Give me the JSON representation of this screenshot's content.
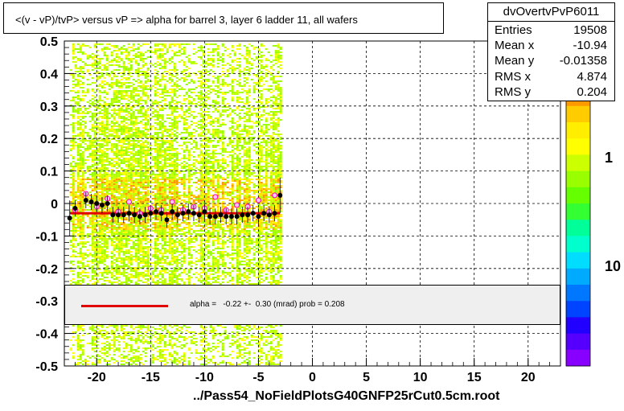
{
  "title": "<(v - vP)/tvP> versus   vP => alpha for barrel 3, layer 6 ladder 11, all wafers",
  "footer": "../Pass54_NoFieldPlotsG40GNFP25rCut0.5cm.root",
  "stats": {
    "name": "dvOvertvPvP6011",
    "rows": [
      {
        "label": "Entries",
        "value": "19508"
      },
      {
        "label": "Mean x",
        "value": "-10.94"
      },
      {
        "label": "Mean y",
        "value": "-0.01358"
      },
      {
        "label": "RMS x",
        "value": "4.874"
      },
      {
        "label": "RMS y",
        "value": "0.204"
      }
    ]
  },
  "legend": {
    "text": "alpha =   -0.22 +-  0.30 (mrad) prob = 0.208",
    "line_color": "#e00000"
  },
  "colorbar_labels": [
    "1",
    "10"
  ],
  "chart_data": {
    "type": "scatter",
    "title": "<(v - vP)/tvP> versus   vP => alpha for barrel 3, layer 6 ladder 11, all wafers",
    "xlim": [
      -23,
      23
    ],
    "ylim": [
      -0.5,
      0.5
    ],
    "x_ticks": [
      -20,
      -15,
      -10,
      -5,
      0,
      5,
      10,
      15,
      20
    ],
    "y_ticks": [
      -0.5,
      -0.4,
      -0.3,
      -0.2,
      -0.1,
      0,
      0.1,
      0.2,
      0.3,
      0.4,
      0.5
    ],
    "grid": true,
    "heatmap_x_range": [
      -22.5,
      -3
    ],
    "profile_black": [
      {
        "x": -22.5,
        "y": -0.045
      },
      {
        "x": -22,
        "y": -0.015
      },
      {
        "x": -21,
        "y": 0.01
      },
      {
        "x": -20.5,
        "y": 0.005
      },
      {
        "x": -20,
        "y": 0.0
      },
      {
        "x": -19.5,
        "y": -0.005
      },
      {
        "x": -19,
        "y": 0.0
      },
      {
        "x": -18.5,
        "y": -0.035
      },
      {
        "x": -18,
        "y": -0.035
      },
      {
        "x": -17.5,
        "y": -0.035
      },
      {
        "x": -17,
        "y": -0.03
      },
      {
        "x": -16.5,
        "y": -0.035
      },
      {
        "x": -16,
        "y": -0.04
      },
      {
        "x": -15.5,
        "y": -0.035
      },
      {
        "x": -15,
        "y": -0.03
      },
      {
        "x": -14.5,
        "y": -0.025
      },
      {
        "x": -14,
        "y": -0.03
      },
      {
        "x": -13.5,
        "y": -0.05
      },
      {
        "x": -13,
        "y": -0.025
      },
      {
        "x": -12.5,
        "y": -0.035
      },
      {
        "x": -12,
        "y": -0.03
      },
      {
        "x": -11.5,
        "y": -0.025
      },
      {
        "x": -11,
        "y": -0.03
      },
      {
        "x": -10.5,
        "y": -0.035
      },
      {
        "x": -10,
        "y": -0.025
      },
      {
        "x": -9.5,
        "y": -0.04
      },
      {
        "x": -9,
        "y": -0.04
      },
      {
        "x": -8.5,
        "y": -0.035
      },
      {
        "x": -8,
        "y": -0.04
      },
      {
        "x": -7.5,
        "y": -0.04
      },
      {
        "x": -7,
        "y": -0.04
      },
      {
        "x": -6.5,
        "y": -0.035
      },
      {
        "x": -6,
        "y": -0.035
      },
      {
        "x": -5.5,
        "y": -0.03
      },
      {
        "x": -5,
        "y": -0.04
      },
      {
        "x": -4.5,
        "y": -0.03
      },
      {
        "x": -4,
        "y": -0.035
      },
      {
        "x": -3.5,
        "y": -0.03
      },
      {
        "x": -3,
        "y": 0.025
      }
    ],
    "profile_pink": [
      {
        "x": -22,
        "y": -0.02
      },
      {
        "x": -21,
        "y": 0.03
      },
      {
        "x": -20,
        "y": -0.01
      },
      {
        "x": -19,
        "y": 0.015
      },
      {
        "x": -18,
        "y": -0.025
      },
      {
        "x": -17,
        "y": 0.005
      },
      {
        "x": -16,
        "y": -0.03
      },
      {
        "x": -15,
        "y": -0.015
      },
      {
        "x": -14,
        "y": -0.02
      },
      {
        "x": -13,
        "y": 0.005
      },
      {
        "x": -12,
        "y": -0.02
      },
      {
        "x": -11,
        "y": -0.01
      },
      {
        "x": -10,
        "y": -0.015
      },
      {
        "x": -9,
        "y": 0.02
      },
      {
        "x": -8,
        "y": -0.02
      },
      {
        "x": -7,
        "y": -0.005
      },
      {
        "x": -6,
        "y": -0.01
      },
      {
        "x": -5,
        "y": 0.01
      },
      {
        "x": -4,
        "y": -0.025
      },
      {
        "x": -3.5,
        "y": 0.025
      }
    ],
    "fit_line": {
      "x": [
        -22.5,
        -3
      ],
      "y": [
        -0.03,
        -0.03
      ]
    }
  }
}
